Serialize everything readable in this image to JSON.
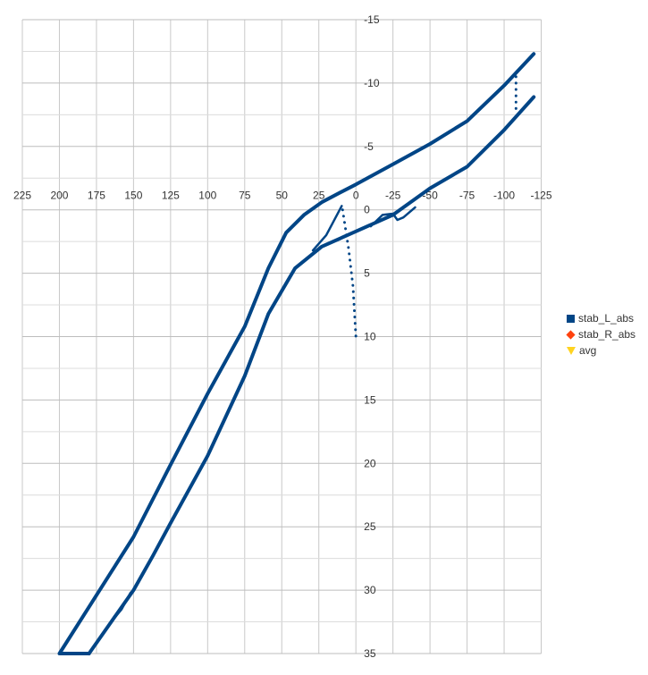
{
  "chart_data": {
    "type": "scatter",
    "title": "",
    "xlabel": "",
    "ylabel": "",
    "xlim": [
      225,
      -125
    ],
    "ylim": [
      -15,
      35
    ],
    "x_reversed": true,
    "y_reversed": true,
    "x_ticks": [
      225,
      200,
      175,
      150,
      125,
      100,
      75,
      50,
      25,
      0,
      -25,
      -50,
      -75,
      -100,
      -125
    ],
    "y_ticks": [
      -15,
      -10,
      -5,
      0,
      5,
      10,
      15,
      20,
      25,
      30,
      35
    ],
    "grid": true,
    "legend_position": "right",
    "series": [
      {
        "name": "stab_L_abs",
        "color": "#004586",
        "marker": "square",
        "segments": [
          {
            "style": "solid",
            "points": [
              [
                180,
                35
              ],
              [
                200,
                35
              ],
              [
                175,
                30.4
              ],
              [
                150,
                25.8
              ],
              [
                125,
                20.1
              ],
              [
                100,
                14.5
              ],
              [
                75,
                9.2
              ],
              [
                59,
                4.6
              ],
              [
                47,
                1.8
              ],
              [
                35,
                0.4
              ],
              [
                23,
                -0.6
              ],
              [
                10,
                -1.4
              ],
              [
                0,
                -2
              ],
              [
                -25,
                -3.6
              ],
              [
                -50,
                -5.2
              ],
              [
                -75,
                -7
              ],
              [
                -100,
                -9.8
              ],
              [
                -120,
                -12.3
              ]
            ]
          },
          {
            "style": "solid",
            "points": [
              [
                180,
                35
              ],
              [
                165,
                32.5
              ],
              [
                150,
                30
              ],
              [
                137,
                27.3
              ],
              [
                125,
                24.7
              ],
              [
                100,
                19.4
              ],
              [
                75,
                13.1
              ],
              [
                59,
                8.2
              ],
              [
                41,
                4.6
              ],
              [
                23,
                2.9
              ],
              [
                0,
                1.7
              ],
              [
                -25,
                0.4
              ],
              [
                -50,
                -1.7
              ],
              [
                -75,
                -3.4
              ],
              [
                -100,
                -6.3
              ],
              [
                -120,
                -8.9
              ]
            ]
          },
          {
            "style": "solid",
            "points": [
              [
                29,
                3.2
              ],
              [
                20,
                2
              ],
              [
                9.6,
                -0.3
              ]
            ]
          },
          {
            "style": "solid",
            "points": [
              [
                -10,
                1.3
              ],
              [
                -18,
                0.4
              ],
              [
                -25,
                0.3
              ],
              [
                -28,
                0.8
              ],
              [
                -32,
                0.6
              ],
              [
                -40,
                -0.2
              ]
            ]
          },
          {
            "style": "solid",
            "points": [
              [
                165,
                32.5
              ],
              [
                158,
                31.5
              ],
              [
                152,
                30.2
              ],
              [
                150,
                30
              ]
            ]
          },
          {
            "style": "dotted",
            "points": [
              [
                9,
                0
              ],
              [
                5,
                3
              ],
              [
                2,
                6
              ],
              [
                0,
                10
              ]
            ]
          },
          {
            "style": "dotted",
            "points": [
              [
                -108,
                -10.5
              ],
              [
                -108,
                -7.9
              ]
            ]
          }
        ]
      },
      {
        "name": "stab_R_abs",
        "color": "#ff420e",
        "marker": "diamond",
        "segments": []
      },
      {
        "name": "avg",
        "color": "#ffd320",
        "marker": "triangle-down",
        "segments": []
      }
    ]
  }
}
